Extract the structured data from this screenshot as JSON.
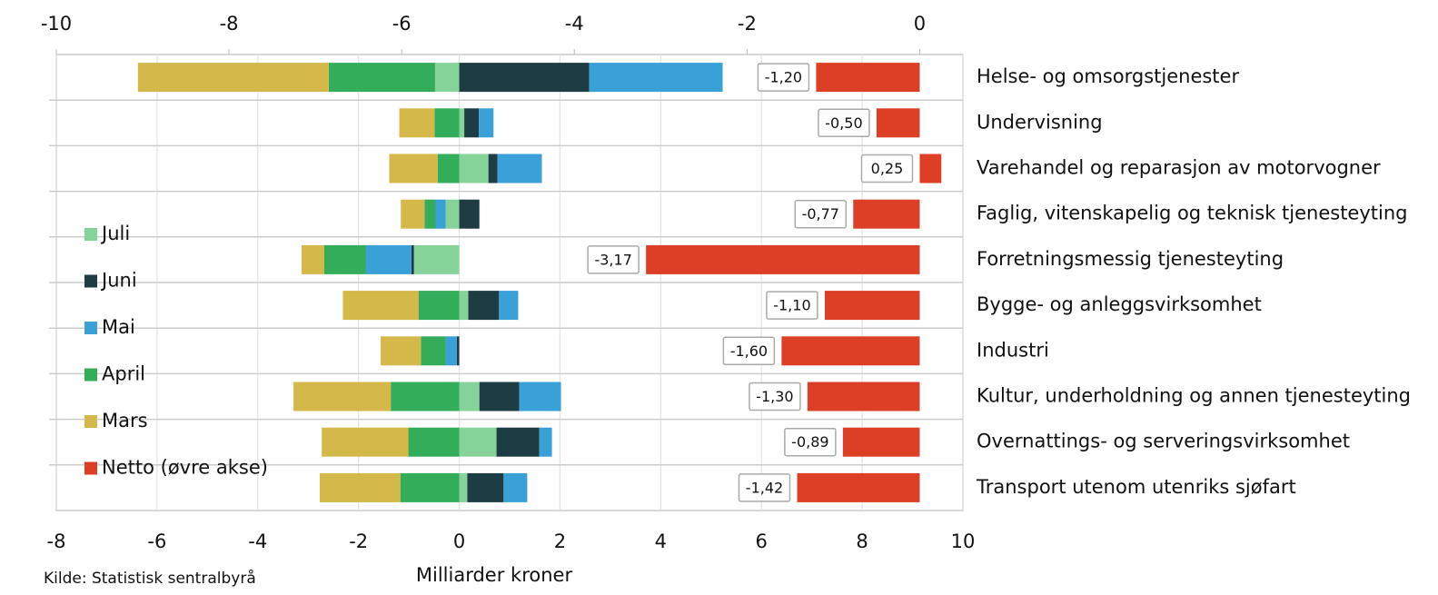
{
  "chart_data": {
    "type": "bar",
    "orientation": "horizontal",
    "stacked": true,
    "categories": [
      "Helse- og omsorgstjenester",
      "Undervisning",
      "Varehandel og reparasjon av motorvogner",
      "Faglig, vitenskapelig og teknisk tjenesteyting",
      "Forretningsmessig tjenesteyting",
      "Bygge- og anleggsvirksomhet",
      "Industri",
      "Kultur, underholdning og annen tjenesteyting",
      "Overnattings- og serveringsvirksomhet",
      "Transport utenom utenriks sjøfart"
    ],
    "series": [
      {
        "name": "Juli",
        "color": "#86d39a",
        "values": [
          -0.48,
          0.1,
          0.58,
          -0.27,
          -0.9,
          0.18,
          0,
          0.4,
          0.74,
          0.16
        ]
      },
      {
        "name": "Juni",
        "color": "#1e3c44",
        "values": [
          2.58,
          0.29,
          0.18,
          0.4,
          -0.05,
          0.61,
          -0.05,
          0.79,
          0.85,
          0.72
        ]
      },
      {
        "name": "Mai",
        "color": "#3aa0d8",
        "values": [
          2.65,
          0.29,
          0.88,
          -0.2,
          -0.9,
          0.38,
          -0.22,
          0.83,
          0.25,
          0.47
        ]
      },
      {
        "name": "April",
        "color": "#33ad5a",
        "values": [
          -2.11,
          -0.49,
          -0.43,
          -0.22,
          -0.83,
          -0.81,
          -0.49,
          -1.36,
          -1.01,
          -1.17
        ]
      },
      {
        "name": "Mars",
        "color": "#d4b84a",
        "values": [
          -3.79,
          -0.7,
          -0.96,
          -0.47,
          -0.45,
          -1.5,
          -0.8,
          -1.93,
          -1.72,
          -1.6
        ]
      },
      {
        "name": "Netto (øvre akse)",
        "color": "#dc3f26",
        "axis": "x2",
        "values": [
          -1.2,
          -0.5,
          0.25,
          -0.77,
          -3.17,
          -1.1,
          -1.6,
          -1.3,
          -0.89,
          -1.42
        ],
        "value_labels": [
          "-1,20",
          "-0,50",
          "0,25",
          "-0,77",
          "-3,17",
          "-1,10",
          "-1,60",
          "-1,30",
          "-0,89",
          "-1,42"
        ]
      }
    ],
    "xlim": [
      -8,
      10
    ],
    "xticks": [
      -8,
      -6,
      -4,
      -2,
      0,
      2,
      4,
      6,
      8,
      10
    ],
    "x2lim": [
      -10,
      0.5
    ],
    "x2ticks": [
      -10,
      -8,
      -6,
      -4,
      -2,
      0
    ],
    "xlabel": "Milliarder kroner",
    "source": "Kilde: Statistisk  sentralbyrå",
    "grid": true,
    "legend": "left"
  }
}
